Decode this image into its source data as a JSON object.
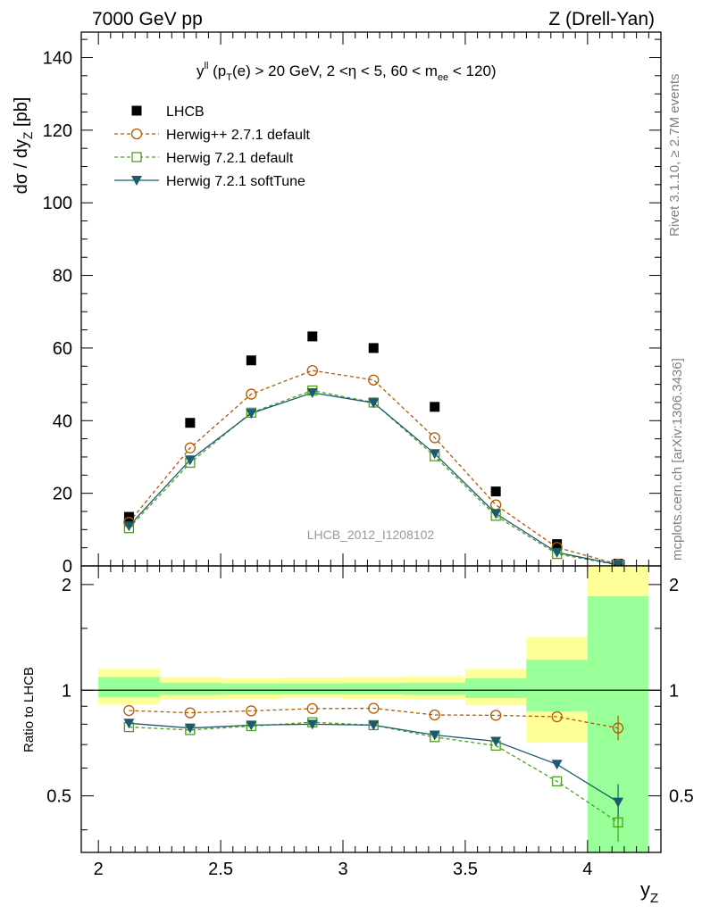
{
  "header": {
    "left": "7000 GeV pp",
    "right": "Z (Drell-Yan)"
  },
  "side_labels": {
    "rivet": "Rivet 3.1.10, ≥ 2.7M events",
    "mcplots": "mcplots.cern.ch [arXiv:1306.3436]"
  },
  "analysis_tag": "LHCB_2012_I1208102",
  "chart_data": [
    {
      "type": "scatter",
      "panel": "main",
      "title": "y^ll (p_T(e) > 20 GeV, 2 <η < 5, 60 < m_ee < 120)",
      "ylabel": "dσ / dy_Z [pb]",
      "xlim": [
        1.93,
        4.3
      ],
      "ylim": [
        0,
        147
      ],
      "yticks": [
        0,
        20,
        40,
        60,
        80,
        100,
        120,
        140
      ],
      "x": [
        2.125,
        2.375,
        2.625,
        2.875,
        3.125,
        3.375,
        3.625,
        3.875,
        4.125
      ],
      "legend_position": "top-left",
      "series": [
        {
          "name": "LHCB",
          "style": "data",
          "color": "#000000",
          "values": [
            13.5,
            39.4,
            56.6,
            63.2,
            60.0,
            43.8,
            20.5,
            6.0,
            0.6
          ]
        },
        {
          "name": "Herwig++ 2.7.1 default",
          "style": "circle-dashed",
          "color": "#b35900",
          "values": [
            12.0,
            32.5,
            47.3,
            53.8,
            51.2,
            35.3,
            16.8,
            5.1,
            0.45
          ]
        },
        {
          "name": "Herwig 7.2.1 default",
          "style": "square-dashed",
          "color": "#4d9e1f",
          "values": [
            10.4,
            28.4,
            42.2,
            48.3,
            45.0,
            30.2,
            13.8,
            3.3,
            0.25
          ]
        },
        {
          "name": "Herwig 7.2.1 softTune",
          "style": "triangle-solid",
          "color": "#1b5b70",
          "values": [
            11.0,
            29.2,
            42.0,
            47.7,
            44.9,
            30.9,
            14.4,
            3.7,
            0.3
          ]
        }
      ]
    },
    {
      "type": "scatter",
      "panel": "ratio",
      "xlabel": "y_Z",
      "ylabel": "Ratio to LHCB",
      "xlim": [
        1.93,
        4.3
      ],
      "ylim": [
        0.345,
        2.26
      ],
      "yscale": "log",
      "yticks": [
        0.5,
        1,
        2
      ],
      "xticks": [
        2,
        2.5,
        3,
        3.5,
        4
      ],
      "x": [
        2.125,
        2.375,
        2.625,
        2.875,
        3.125,
        3.375,
        3.625,
        3.875,
        4.125
      ],
      "bands": {
        "bin_edges": [
          2.0,
          2.25,
          2.5,
          2.75,
          3.0,
          3.25,
          3.5,
          3.75,
          4.0,
          4.25
        ],
        "yellow": [
          [
            0.91,
            1.15
          ],
          [
            0.94,
            1.09
          ],
          [
            0.945,
            1.08
          ],
          [
            0.95,
            1.085
          ],
          [
            0.945,
            1.09
          ],
          [
            0.94,
            1.095
          ],
          [
            0.905,
            1.15
          ],
          [
            0.71,
            1.42
          ],
          [
            0.3,
            2.3
          ]
        ],
        "green": [
          [
            0.955,
            1.09
          ],
          [
            0.97,
            1.05
          ],
          [
            0.972,
            1.045
          ],
          [
            0.975,
            1.045
          ],
          [
            0.972,
            1.048
          ],
          [
            0.97,
            1.05
          ],
          [
            0.95,
            1.08
          ],
          [
            0.87,
            1.22
          ],
          [
            0.3,
            1.85
          ]
        ]
      },
      "series": [
        {
          "name": "Herwig++ 2.7.1 default",
          "color": "#b35900",
          "values": [
            0.875,
            0.862,
            0.873,
            0.886,
            0.888,
            0.85,
            0.848,
            0.84,
            0.78
          ]
        },
        {
          "name": "Herwig 7.2.1 default",
          "color": "#4d9e1f",
          "values": [
            0.785,
            0.77,
            0.79,
            0.81,
            0.795,
            0.735,
            0.695,
            0.55,
            0.42
          ]
        },
        {
          "name": "Herwig 7.2.1 softTune",
          "color": "#1b5b70",
          "values": [
            0.805,
            0.78,
            0.795,
            0.8,
            0.795,
            0.745,
            0.715,
            0.615,
            0.48
          ]
        }
      ]
    }
  ]
}
